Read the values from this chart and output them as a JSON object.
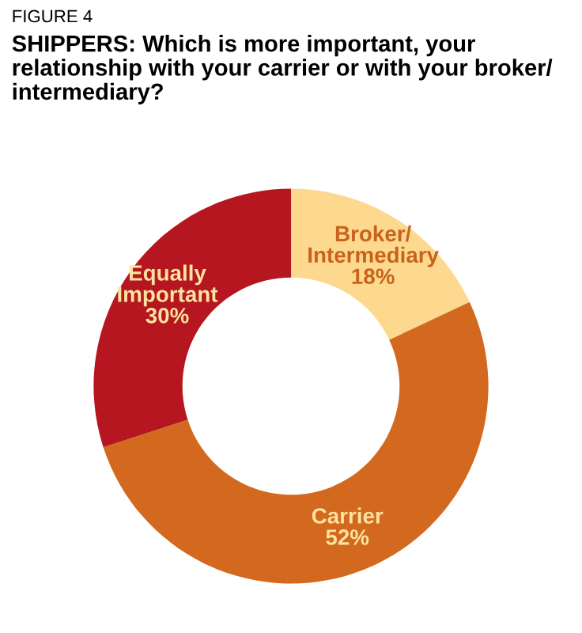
{
  "chart_data": {
    "type": "donut",
    "title": "SHIPPERS: Which is more important, your relationship with your carrier or with your broker/ intermediary?",
    "annotations": [
      "FIGURE 4"
    ],
    "categories": [
      "Broker/\nIntermediary",
      "Carrier",
      "Equally\nImportant"
    ],
    "values": [
      18,
      52,
      30
    ],
    "colors": [
      "#fcd98e",
      "#d2691f",
      "#b5161f"
    ],
    "value_labels": [
      "18%",
      "52%",
      "30%"
    ],
    "legend": false
  }
}
